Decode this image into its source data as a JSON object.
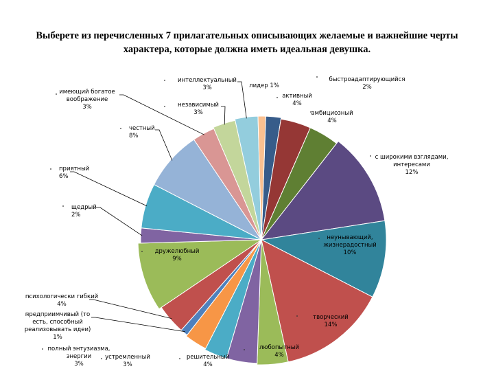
{
  "title": {
    "line1": "Выберете из перечисленных  7 прилагательных описывающих желаемые и важнейшие черты",
    "line2": "характера, которые должна иметь идеальная девушка."
  },
  "chart_data": {
    "type": "pie",
    "title": "Выберете из перечисленных  7 прилагательных описывающих желаемые и важнейшие черты характера, которые должна иметь идеальная девушка.",
    "slices": [
      {
        "name": "быстроадаптирующийся",
        "value": 2,
        "color": "#375c8a",
        "label": [
          "быстроадаптирующийся",
          "2%"
        ]
      },
      {
        "name": "активный",
        "value": 4,
        "color": "#953735",
        "label": [
          "активный",
          "4%"
        ]
      },
      {
        "name": "амбициозный",
        "value": 4,
        "color": "#5f7f33",
        "label": [
          "амбициозный",
          "4%"
        ]
      },
      {
        "name": "с широкими взглядами, интересами",
        "value": 12,
        "color": "#5b4a82",
        "label": [
          "с широкими взглядами,",
          "интересами",
          "12%"
        ]
      },
      {
        "name": "неунывающий, жизнерадостный",
        "value": 10,
        "color": "#31849b",
        "label": [
          "неунывающий,",
          "жизнерадостный",
          "10%"
        ]
      },
      {
        "name": "творческий",
        "value": 14,
        "color": "#c0504d",
        "label": [
          "творческий",
          "14%"
        ]
      },
      {
        "name": "любопытный",
        "value": 4,
        "color": "#9bbb59",
        "label": [
          "любопытный",
          "4%"
        ]
      },
      {
        "name": "решительный",
        "value": 4,
        "color": "#8064a2",
        "label": [
          "решительный",
          "4%"
        ]
      },
      {
        "name": "устремленный",
        "value": 3,
        "color": "#4bacc6",
        "label": [
          "устремленный",
          "3%"
        ]
      },
      {
        "name": "полный энтузиазма, энергии",
        "value": 3,
        "color": "#f79646",
        "label": [
          "полный энтузиазма,",
          "энергии",
          "3%"
        ]
      },
      {
        "name": "предприимчивый (то есть, способный реализовывать идеи)",
        "value": 1,
        "color": "#4f81bd",
        "label": [
          "предприимчивый (то",
          "есть, способный",
          "реализовывать идеи)",
          "1%"
        ]
      },
      {
        "name": "психологически гибкий",
        "value": 4,
        "color": "#c0504d",
        "label": [
          "психологически гибкий",
          "4%"
        ]
      },
      {
        "name": "дружелюбный",
        "value": 9,
        "color": "#9bbb59",
        "label": [
          "дружелюбный",
          "9%"
        ]
      },
      {
        "name": "щедрый",
        "value": 2,
        "color": "#8064a2",
        "label": [
          "щедрый",
          "2%"
        ]
      },
      {
        "name": "приятный",
        "value": 6,
        "color": "#4bacc6",
        "label": [
          "приятный",
          "6%"
        ]
      },
      {
        "name": "честный",
        "value": 8,
        "color": "#95b3d7",
        "label": [
          "честный",
          "8%"
        ]
      },
      {
        "name": "имеющий богатое воображение",
        "value": 3,
        "color": "#d99694",
        "label": [
          "имеющий богатое",
          "воображение",
          "3%"
        ]
      },
      {
        "name": "независимый",
        "value": 3,
        "color": "#c3d69b",
        "label": [
          "независимый",
          "3%"
        ]
      },
      {
        "name": "интеллектуальный",
        "value": 3,
        "color": "#93cddd",
        "label": [
          "интеллектуальный",
          "3%"
        ]
      },
      {
        "name": "лидер",
        "value": 1,
        "color": "#fac090",
        "label": [
          "лидер   1%"
        ]
      }
    ],
    "legend": "none"
  }
}
